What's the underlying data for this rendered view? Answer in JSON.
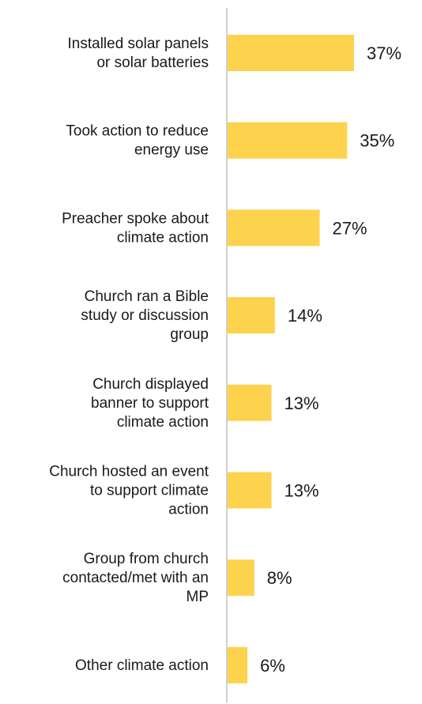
{
  "chart_data": {
    "type": "bar",
    "orientation": "horizontal",
    "categories": [
      "Installed solar panels or solar batteries",
      "Took action to reduce energy use",
      "Preacher spoke about climate action",
      "Church ran a Bible study or discussion group",
      "Church displayed banner to support climate action",
      "Church hosted an event to support climate action",
      "Group from church contacted/met with an MP",
      "Other climate action"
    ],
    "category_lines": [
      [
        "Installed solar panels",
        "or solar batteries"
      ],
      [
        "Took action to reduce",
        "energy use"
      ],
      [
        "Preacher spoke about",
        "climate action"
      ],
      [
        "Church ran a Bible",
        "study or discussion",
        "group"
      ],
      [
        "Church displayed",
        "banner to support",
        "climate action"
      ],
      [
        "Church hosted an event",
        "to support climate",
        "action"
      ],
      [
        "Group from church",
        "contacted/met with an",
        "MP"
      ],
      [
        "Other climate action"
      ]
    ],
    "values": [
      37,
      35,
      27,
      14,
      13,
      13,
      8,
      6
    ],
    "value_labels": [
      "37%",
      "35%",
      "27%",
      "14%",
      "13%",
      "13%",
      "8%",
      "6%"
    ],
    "bar_color": "#FDD34D",
    "axis_color": "#D0D0D0",
    "grid": false,
    "legend": "none"
  }
}
